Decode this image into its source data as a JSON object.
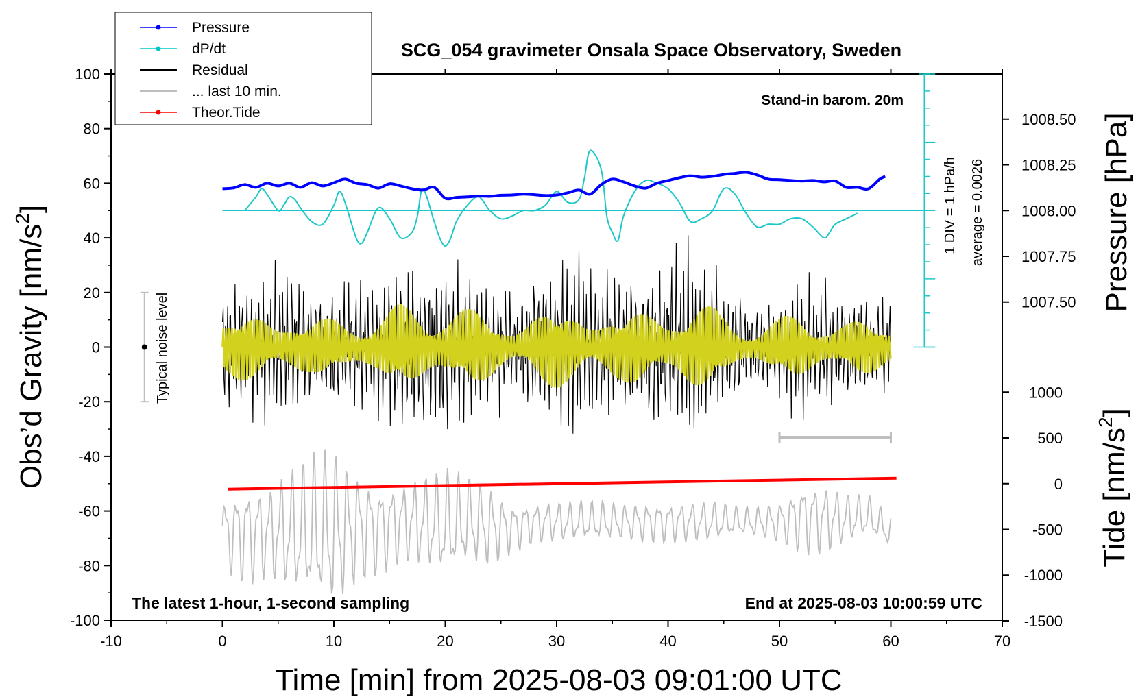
{
  "chart_data": {
    "type": "line",
    "title": "SCG_054 gravimeter Onsala Space Observatory, Sweden",
    "xlabel": "Time [min] from 2025-08-03 09:01:00 UTC",
    "ylabel_left": "Obs’d Gravity [nm/s²]",
    "ylabel_left_base": "Obs’d Gravity [nm/s",
    "ylabel_left_sup": "2",
    "ylabel_left_close": "]",
    "ylabel_right_pressure": "Pressure [hPa]",
    "ylabel_right_tide": "Tide [nm/s²]",
    "ylabel_right_tide_base": "Tide [nm/s",
    "ylabel_right_tide_sup": "2",
    "ylabel_right_tide_close": "]",
    "xlim": [
      -10,
      70
    ],
    "ylim": [
      -100,
      100
    ],
    "x_ticks": [
      "-10",
      "0",
      "10",
      "20",
      "30",
      "40",
      "50",
      "60",
      "70"
    ],
    "y_ticks": [
      "-100",
      "-80",
      "-60",
      "-40",
      "-20",
      "0",
      "20",
      "40",
      "60",
      "80",
      "100"
    ],
    "pressure_ticks": [
      "1007.50",
      "1007.75",
      "1008.00",
      "1008.25",
      "1008.50"
    ],
    "tide_ticks": [
      "-1500",
      "-1000",
      "-500",
      "0",
      "500",
      "1000"
    ],
    "legend": {
      "position": "top-left",
      "items": [
        {
          "label": "Pressure",
          "color": "#0000ff",
          "style": "line-dot"
        },
        {
          "label": "dP/dt",
          "color": "#00c8c8",
          "style": "line-dot"
        },
        {
          "label": "Residual",
          "color": "#000000",
          "style": "line"
        },
        {
          "label": "... last 10 min.",
          "color": "#bebebe",
          "style": "line"
        },
        {
          "label": "Theor.Tide",
          "color": "#ff0000",
          "style": "line-dot"
        }
      ]
    },
    "annotations": {
      "barometer": "Stand-in barom. 20m",
      "scale": "1 DIV = 1 hPa/h",
      "average": "average = 0.0026",
      "noise": "Typical noise level",
      "latest": "The latest 1-hour, 1-second sampling",
      "end": "End at 2025-08-03 10:00:59 UTC"
    },
    "colors": {
      "pressure": "#0000ff",
      "dpdt": "#1ec8c8",
      "residual": "#000000",
      "last10": "#bebebe",
      "tide": "#ff0000",
      "smoothed": "#d2d21e",
      "noise": "#bebebe"
    },
    "noise_level": {
      "x": -7,
      "center": 0,
      "low": -20,
      "high": 20
    },
    "last10_marker": {
      "x_start": 50,
      "x_end": 60,
      "y": -33
    },
    "dpdt_scale": {
      "x": 63,
      "y_top": 100,
      "y_bottom": 0,
      "zero": 50,
      "div": 4
    },
    "pressure": {
      "x": [
        0,
        1,
        2,
        3,
        4,
        5,
        6,
        7,
        8,
        9,
        10,
        11,
        12,
        13,
        14,
        15,
        16,
        17,
        18,
        19,
        20,
        21,
        22,
        23,
        24,
        25,
        26,
        27,
        28,
        29,
        30,
        31,
        32,
        33,
        34,
        35,
        36,
        37,
        38,
        39,
        40,
        41,
        42,
        43,
        44,
        45,
        46,
        47,
        48,
        49,
        50,
        51,
        52,
        53,
        54,
        55,
        56,
        57,
        58,
        59,
        59.5
      ],
      "y": [
        58,
        58.3,
        59.5,
        58.5,
        60,
        59,
        60,
        58.5,
        60.2,
        59,
        60.2,
        61.5,
        60,
        59.5,
        58.2,
        59.8,
        59,
        58,
        57.5,
        58.5,
        54.5,
        54.8,
        55,
        55.3,
        55.2,
        55.6,
        55.7,
        56,
        55.8,
        55.5,
        55.7,
        56.5,
        57.5,
        56,
        59.5,
        61.5,
        60.5,
        59,
        58.2,
        60,
        61,
        62,
        62.7,
        62.2,
        62.5,
        63.2,
        63.6,
        64,
        63,
        61.5,
        61.3,
        61,
        60.8,
        61,
        60.5,
        60.8,
        58.5,
        58.5,
        58,
        61.5,
        62.5
      ]
    },
    "dpdt": {
      "x": [
        2,
        3,
        3.5,
        4,
        5,
        5.5,
        6,
        6.5,
        7,
        8,
        9,
        10,
        10.5,
        11,
        12,
        12.5,
        13,
        14,
        15,
        16,
        17,
        17.5,
        18,
        19,
        19.5,
        20,
        20.5,
        21,
        22,
        23,
        24,
        25,
        26,
        27,
        28,
        29,
        30,
        31,
        32,
        32.5,
        33,
        34,
        34.5,
        35,
        35.5,
        36,
        37,
        38,
        39,
        40,
        41,
        42,
        43,
        44,
        45,
        46,
        47,
        48,
        49,
        50,
        51,
        52,
        53,
        54,
        54.5,
        55,
        56,
        57
      ],
      "y": [
        50,
        55,
        58,
        56,
        50,
        52,
        55,
        54,
        51,
        46,
        45,
        52,
        57,
        53,
        40,
        38,
        42,
        51,
        47,
        40,
        42,
        48,
        58,
        46,
        40,
        37,
        40,
        46,
        52,
        55,
        50,
        47,
        48,
        50,
        50,
        52,
        57,
        53,
        54,
        62,
        72,
        65,
        48,
        42,
        39,
        48,
        57,
        61,
        60,
        58,
        53,
        46,
        47,
        50,
        58,
        56,
        49,
        44,
        45,
        45,
        47,
        47,
        44,
        40,
        42,
        45,
        47,
        49
      ]
    },
    "tide": {
      "x": [
        0.5,
        60.5
      ],
      "y": [
        -52,
        -48
      ]
    },
    "residual_envelope": {
      "x": [
        0,
        2,
        4,
        6,
        8,
        10,
        12,
        14,
        16,
        18,
        20,
        22,
        24,
        26,
        28,
        30,
        32,
        34,
        36,
        38,
        40,
        42,
        44,
        46,
        48,
        50,
        52,
        54,
        56,
        58,
        60
      ],
      "amp": [
        22,
        25,
        30,
        28,
        20,
        24,
        26,
        24,
        32,
        35,
        34,
        30,
        26,
        22,
        28,
        30,
        33,
        30,
        26,
        30,
        35,
        36,
        30,
        22,
        18,
        22,
        26,
        24,
        22,
        20,
        18
      ]
    },
    "last10_envelope": {
      "x": [
        0,
        2,
        4,
        6,
        8,
        10,
        12,
        14,
        16,
        18,
        20,
        22,
        24,
        26,
        28,
        30,
        32,
        34,
        36,
        38,
        40,
        42,
        44,
        46,
        48,
        50,
        52,
        54,
        56,
        58,
        60
      ],
      "center": [
        -68,
        -68,
        -68,
        -68,
        -68,
        -68,
        -66,
        -66,
        -64,
        -64,
        -66,
        -64,
        -66,
        -66,
        -64,
        -64,
        -64,
        -64,
        -64,
        -64,
        -64,
        -64,
        -64,
        -64,
        -64,
        -64,
        -62,
        -63,
        -63,
        -62,
        -68
      ],
      "amp": [
        14,
        20,
        18,
        24,
        30,
        32,
        22,
        18,
        16,
        18,
        22,
        18,
        16,
        10,
        8,
        8,
        8,
        8,
        7,
        8,
        8,
        8,
        8,
        6,
        6,
        8,
        14,
        14,
        10,
        8,
        6
      ]
    }
  }
}
